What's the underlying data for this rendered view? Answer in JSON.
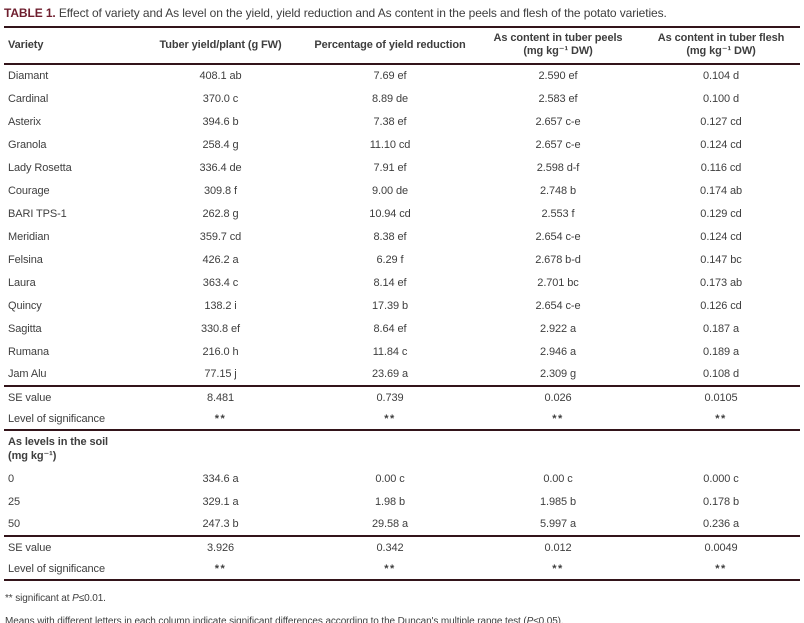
{
  "title": {
    "label": "TABLE 1.",
    "text": " Effect of variety and As level on the yield, yield reduction and As content in the peels and flesh of the potato varieties."
  },
  "accent_colors": {
    "title_label": "#6e1e2e",
    "rule": "#33141a",
    "body_text": "#3e3e3e"
  },
  "chart_data": {
    "type": "table",
    "title": "TABLE 1. Effect of variety and As level on the yield, yield reduction and As content in the peels and flesh of the potato varieties.",
    "columns": [
      {
        "lines": [
          "Variety"
        ]
      },
      {
        "lines": [
          "Tuber yield/plant (g FW)"
        ]
      },
      {
        "lines": [
          "Percentage of yield reduction"
        ]
      },
      {
        "lines": [
          "As content in tuber peels",
          "(mg kg⁻¹ DW)"
        ]
      },
      {
        "lines": [
          "As content in tuber flesh",
          "(mg kg⁻¹ DW)"
        ]
      }
    ],
    "variety_rows": [
      [
        "Diamant",
        "408.1 ab",
        "7.69 ef",
        "2.590 ef",
        "0.104 d"
      ],
      [
        "Cardinal",
        "370.0 c",
        "8.89 de",
        "2.583 ef",
        "0.100 d"
      ],
      [
        "Asterix",
        "394.6 b",
        "7.38 ef",
        "2.657 c-e",
        "0.127 cd"
      ],
      [
        "Granola",
        "258.4 g",
        "11.10 cd",
        "2.657 c-e",
        "0.124 cd"
      ],
      [
        "Lady Rosetta",
        "336.4 de",
        "7.91 ef",
        "2.598 d-f",
        "0.116 cd"
      ],
      [
        "Courage",
        "309.8 f",
        "9.00 de",
        "2.748 b",
        "0.174 ab"
      ],
      [
        "BARI TPS-1",
        "262.8 g",
        "10.94 cd",
        "2.553 f",
        "0.129 cd"
      ],
      [
        "Meridian",
        "359.7 cd",
        "8.38 ef",
        "2.654 c-e",
        "0.124 cd"
      ],
      [
        "Felsina",
        "426.2 a",
        "6.29 f",
        "2.678 b-d",
        "0.147 bc"
      ],
      [
        "Laura",
        "363.4 c",
        "8.14 ef",
        "2.701 bc",
        "0.173 ab"
      ],
      [
        "Quincy",
        "138.2 i",
        "17.39 b",
        "2.654 c-e",
        "0.126 cd"
      ],
      [
        "Sagitta",
        "330.8 ef",
        "8.64 ef",
        "2.922 a",
        "0.187 a"
      ],
      [
        "Rumana",
        "216.0 h",
        "11.84 c",
        "2.946 a",
        "0.189 a"
      ],
      [
        "Jam Alu",
        "77.15 j",
        "23.69 a",
        "2.309 g",
        "0.108 d"
      ]
    ],
    "variety_stats": [
      [
        "SE value",
        "8.481",
        "0.739",
        "0.026",
        "0.0105"
      ],
      [
        "Level of significance",
        "**",
        "**",
        "**",
        "**"
      ]
    ],
    "soil_section_header_lines": [
      "As levels in the soil",
      "(mg kg⁻¹)"
    ],
    "soil_rows": [
      [
        "0",
        "334.6 a",
        "0.00 c",
        "0.00 c",
        "0.000 c"
      ],
      [
        "25",
        "329.1 a",
        "1.98 b",
        "1.985 b",
        "0.178 b"
      ],
      [
        "50",
        "247.3 b",
        "29.58 a",
        "5.997 a",
        "0.236 a"
      ]
    ],
    "soil_stats": [
      [
        "SE value",
        "3.926",
        "0.342",
        "0.012",
        "0.0049"
      ],
      [
        "Level of significance",
        "**",
        "**",
        "**",
        "**"
      ]
    ]
  },
  "footnotes": {
    "sig": {
      "prefix": "** significant at ",
      "p": "P",
      "suffix": "≤0.01."
    },
    "duncan": {
      "prefix": "Means with different letters in each column indicate significant differences according to the Duncan's multiple range test (",
      "p": "P",
      "suffix": "≤0.05)."
    }
  }
}
